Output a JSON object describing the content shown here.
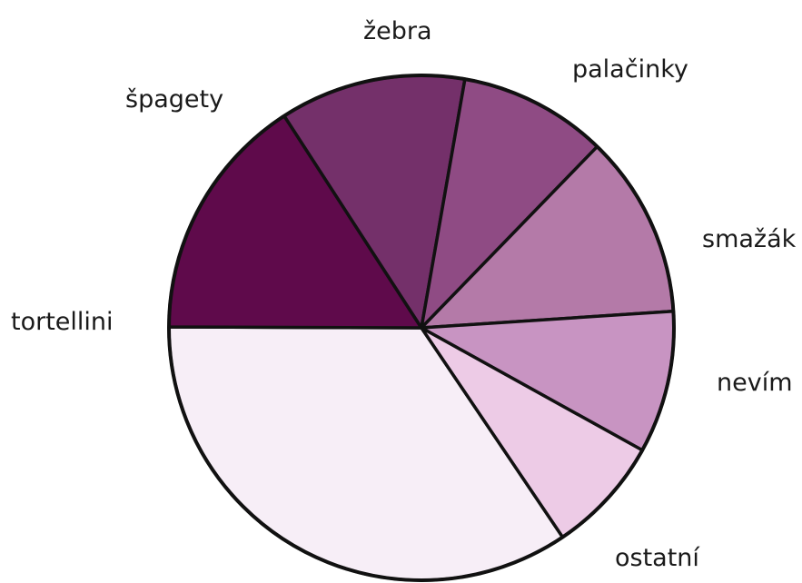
{
  "chart_data": {
    "type": "pie",
    "title": "",
    "start_angle_deg": 56,
    "direction": "clockwise",
    "slices": [
      {
        "label": "ostatní",
        "value": 34.5,
        "color": "#f7eef7"
      },
      {
        "label": "tortellini",
        "value": 15.8,
        "color": "#5f0a4b"
      },
      {
        "label": "špagety",
        "value": 11.9,
        "color": "#74306a"
      },
      {
        "label": "žebra",
        "value": 9.5,
        "color": "#8f4b84"
      },
      {
        "label": "palačinky",
        "value": 11.7,
        "color": "#b47aa8"
      },
      {
        "label": "smažák",
        "value": 9.1,
        "color": "#c894c2"
      },
      {
        "label": "nevím",
        "value": 7.5,
        "color": "#edcbe6"
      }
    ]
  }
}
